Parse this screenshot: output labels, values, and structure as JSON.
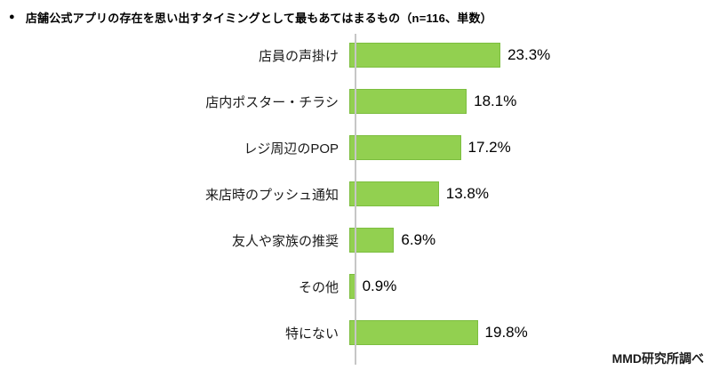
{
  "title": {
    "bullet": "●",
    "text": "店舗公式アプリの存在を思い出すタイミングとして最もあてはまるもの（n=116、単数）"
  },
  "source": "MMD研究所調べ",
  "colors": {
    "bar_fill": "#92d050",
    "bar_border": "#7cbe3f",
    "axis": "#c6c6c6",
    "text": "#000000"
  },
  "chart_data": {
    "type": "bar",
    "orientation": "horizontal",
    "title": "店舗公式アプリの存在を思い出すタイミングとして最もあてはまるもの",
    "sample_note": "n=116、単数",
    "categories": [
      "店員の声掛け",
      "店内ポスター・チラシ",
      "レジ周辺のPOP",
      "来店時のプッシュ通知",
      "友人や家族の推奨",
      "その他",
      "特にない"
    ],
    "values": [
      23.3,
      18.1,
      17.2,
      13.8,
      6.9,
      0.9,
      19.8
    ],
    "value_labels": [
      "23.3%",
      "18.1%",
      "17.2%",
      "13.8%",
      "6.9%",
      "0.9%",
      "19.8%"
    ],
    "unit": "%",
    "xlim": [
      0,
      25
    ],
    "grid": false,
    "legend": false
  }
}
